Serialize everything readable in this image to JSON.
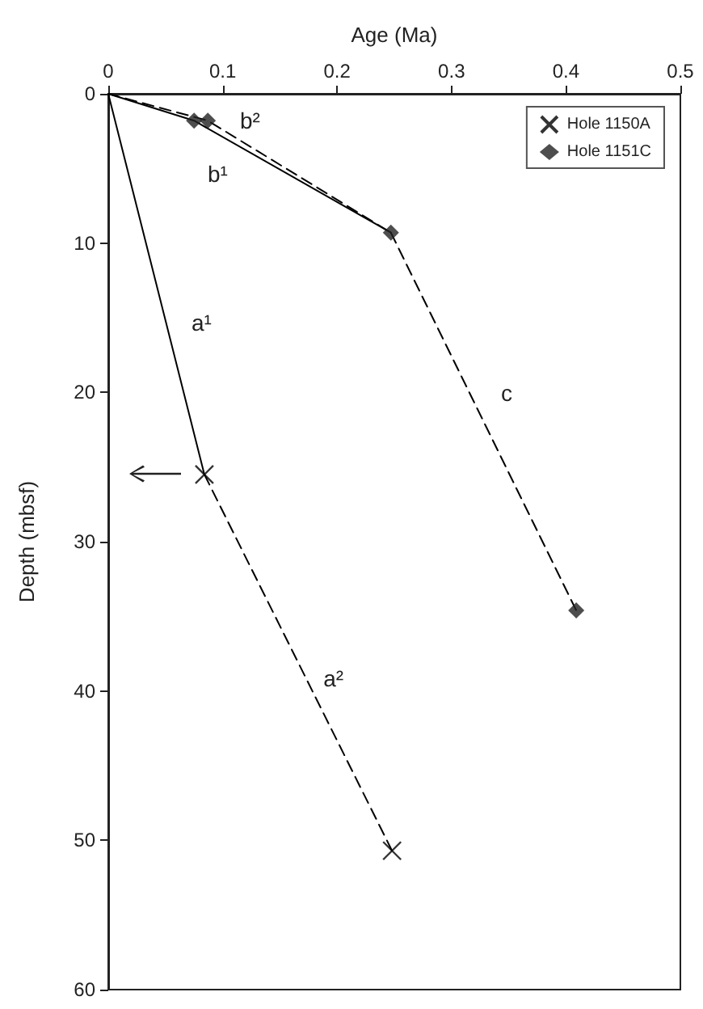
{
  "chart_data": {
    "type": "scatter",
    "xlabel": "Age (Ma)",
    "ylabel": "Depth (mbsf)",
    "xlim": [
      0,
      0.5
    ],
    "xticks": [
      0,
      0.1,
      0.2,
      0.3,
      0.4,
      0.5
    ],
    "ylim": [
      60,
      0
    ],
    "yticks": [
      0,
      10,
      20,
      30,
      40,
      50,
      60
    ],
    "legend": "top right",
    "series": [
      {
        "name": "Hole 1150A",
        "color": "#000000",
        "marker": "cross",
        "x": [
          0.084,
          0.248
        ],
        "values": [
          25.5,
          50.7
        ]
      },
      {
        "name": "Hole 1151C",
        "color": "#222222",
        "marker": "diamond",
        "x": [
          0.075,
          0.087,
          0.247,
          0.409
        ],
        "values": [
          1.8,
          1.8,
          9.3,
          34.6
        ]
      },
      {
        "name": "a¹",
        "type": "line",
        "color": "#000000",
        "line_style": "solid",
        "marker": "none",
        "x": [
          0,
          0.084
        ],
        "values": [
          0,
          25.5
        ]
      },
      {
        "name": "a²",
        "type": "line",
        "color": "#000000",
        "line_style": "dashed",
        "marker": "none",
        "x": [
          0.084,
          0.248
        ],
        "values": [
          25.5,
          50.7
        ]
      },
      {
        "name": "b¹",
        "type": "line",
        "color": "#000000",
        "line_style": "solid",
        "marker": "none",
        "x": [
          0,
          0.075,
          0.247
        ],
        "values": [
          0,
          1.8,
          9.3
        ]
      },
      {
        "name": "b²",
        "type": "line",
        "color": "#000000",
        "line_style": "dashed",
        "marker": "none",
        "x": [
          0,
          0.087,
          0.247
        ],
        "values": [
          0,
          1.8,
          9.3
        ]
      },
      {
        "name": "c",
        "type": "line",
        "color": "#000000",
        "line_style": "dashed",
        "marker": "none",
        "x": [
          0.247,
          0.409
        ],
        "values": [
          9.3,
          34.6
        ]
      }
    ]
  }
}
